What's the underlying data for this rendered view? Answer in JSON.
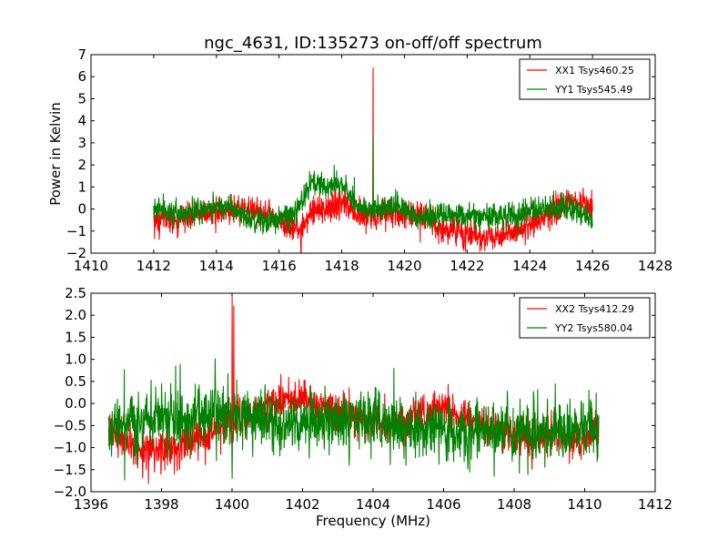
{
  "figure": {
    "title": "ngc_4631, ID:135273 on-off/off spectrum",
    "xlabel": "Frequency (MHz)"
  },
  "colors": {
    "xx": "#ff0000",
    "yy": "#008000",
    "axes": "#000000",
    "background": "#ffffff"
  },
  "chart_data": [
    {
      "type": "line",
      "title": "ngc_4631, ID:135273 on-off/off spectrum",
      "xlabel": "",
      "ylabel": "Power in Kelvin",
      "xlim": [
        1410,
        1428
      ],
      "ylim": [
        -2,
        7
      ],
      "xticks": [
        "1410",
        "1412",
        "1414",
        "1416",
        "1418",
        "1420",
        "1422",
        "1424",
        "1426",
        "1428"
      ],
      "yticks": [
        "−2",
        "−1",
        "0",
        "1",
        "2",
        "3",
        "4",
        "5",
        "6",
        "7"
      ],
      "grid": false,
      "legend_position": "top-right",
      "series": [
        {
          "name": "XX1 Tsys460.25",
          "color": "#ff0000",
          "x_start": 1412.0,
          "x_end": 1426.0,
          "anchors": [
            [
              1412,
              -0.5
            ],
            [
              1412.5,
              -0.5
            ],
            [
              1413,
              -0.4
            ],
            [
              1413.5,
              -0.2
            ],
            [
              1414,
              -0.2
            ],
            [
              1414.5,
              -0.1
            ],
            [
              1415,
              0
            ],
            [
              1415.5,
              -0.2
            ],
            [
              1416,
              -0.5
            ],
            [
              1416.5,
              -0.9
            ],
            [
              1416.8,
              -0.8
            ],
            [
              1417,
              -0.2
            ],
            [
              1417.5,
              0
            ],
            [
              1418,
              0.3
            ],
            [
              1418.5,
              -0.2
            ],
            [
              1419,
              -0.3
            ],
            [
              1419.5,
              -0.1
            ],
            [
              1420,
              -0.1
            ],
            [
              1420.5,
              -0.4
            ],
            [
              1421,
              -0.8
            ],
            [
              1421.5,
              -1.0
            ],
            [
              1422,
              -1.1
            ],
            [
              1422.5,
              -1.3
            ],
            [
              1423,
              -1.3
            ],
            [
              1423.5,
              -1.0
            ],
            [
              1424,
              -0.8
            ],
            [
              1424.5,
              -0.3
            ],
            [
              1425,
              0.2
            ],
            [
              1425.5,
              0.4
            ],
            [
              1426,
              0.2
            ]
          ],
          "noise": 0.32,
          "spikes": [
            [
              1419.0,
              6.4
            ],
            [
              1416.7,
              -2.0
            ],
            [
              1420.5,
              -1.5
            ]
          ]
        },
        {
          "name": "YY1 Tsys545.49",
          "color": "#008000",
          "x_start": 1412.0,
          "x_end": 1426.0,
          "anchors": [
            [
              1412,
              0
            ],
            [
              1412.5,
              -0.1
            ],
            [
              1413,
              -0.2
            ],
            [
              1413.5,
              -0.1
            ],
            [
              1414,
              0.1
            ],
            [
              1414.5,
              0
            ],
            [
              1415,
              -0.4
            ],
            [
              1415.5,
              -0.5
            ],
            [
              1416,
              -0.5
            ],
            [
              1416.5,
              -0.1
            ],
            [
              1416.8,
              0.6
            ],
            [
              1417,
              1.2
            ],
            [
              1417.5,
              1.0
            ],
            [
              1418,
              1.2
            ],
            [
              1418.3,
              0.5
            ],
            [
              1418.5,
              0
            ],
            [
              1419,
              0
            ],
            [
              1419.5,
              0.1
            ],
            [
              1420,
              0
            ],
            [
              1420.5,
              -0.3
            ],
            [
              1421,
              -0.2
            ],
            [
              1421.5,
              -0.3
            ],
            [
              1422,
              -0.3
            ],
            [
              1422.5,
              -0.4
            ],
            [
              1423,
              -0.3
            ],
            [
              1423.5,
              -0.3
            ],
            [
              1424,
              -0.2
            ],
            [
              1424.5,
              0
            ],
            [
              1425,
              0.1
            ],
            [
              1425.5,
              -0.1
            ],
            [
              1426,
              -0.5
            ]
          ],
          "noise": 0.28,
          "spikes": [
            [
              1419.0,
              3.3
            ]
          ]
        }
      ]
    },
    {
      "type": "line",
      "title": "",
      "xlabel": "Frequency (MHz)",
      "ylabel": "",
      "xlim": [
        1396,
        1412
      ],
      "ylim": [
        -2.0,
        2.5
      ],
      "xticks": [
        "1396",
        "1398",
        "1400",
        "1402",
        "1404",
        "1406",
        "1408",
        "1410",
        "1412"
      ],
      "yticks": [
        "−2.0",
        "−1.5",
        "−1.0",
        "−0.5",
        "0.0",
        "0.5",
        "1.0",
        "1.5",
        "2.0",
        "2.5"
      ],
      "grid": false,
      "legend_position": "top-right",
      "series": [
        {
          "name": "XX2 Tsys412.29",
          "color": "#ff0000",
          "x_start": 1396.5,
          "x_end": 1410.4,
          "anchors": [
            [
              1396.5,
              -0.6
            ],
            [
              1397,
              -0.9
            ],
            [
              1397.5,
              -1.1
            ],
            [
              1398,
              -1.1
            ],
            [
              1398.5,
              -1.0
            ],
            [
              1399,
              -0.8
            ],
            [
              1399.5,
              -0.7
            ],
            [
              1400,
              -0.4
            ],
            [
              1400.5,
              -0.3
            ],
            [
              1401,
              0
            ],
            [
              1401.5,
              0.1
            ],
            [
              1402,
              0.1
            ],
            [
              1402.5,
              0
            ],
            [
              1403,
              -0.2
            ],
            [
              1403.5,
              -0.3
            ],
            [
              1404,
              -0.4
            ],
            [
              1404.5,
              -0.5
            ],
            [
              1405,
              -0.4
            ],
            [
              1405.5,
              -0.2
            ],
            [
              1406,
              -0.1
            ],
            [
              1406.5,
              -0.3
            ],
            [
              1407,
              -0.5
            ],
            [
              1407.5,
              -0.6
            ],
            [
              1408,
              -0.7
            ],
            [
              1408.5,
              -0.8
            ],
            [
              1409,
              -0.7
            ],
            [
              1409.5,
              -0.8
            ],
            [
              1410,
              -0.8
            ],
            [
              1410.4,
              -0.6
            ]
          ],
          "noise": 0.22,
          "spikes": [
            [
              1400.0,
              2.4
            ],
            [
              1400.05,
              2.2
            ]
          ]
        },
        {
          "name": "YY2 Tsys580.04",
          "color": "#008000",
          "x_start": 1396.5,
          "x_end": 1410.4,
          "anchors": [
            [
              1396.5,
              -0.6
            ],
            [
              1397,
              -0.4
            ],
            [
              1397.5,
              -0.4
            ],
            [
              1398,
              -0.3
            ],
            [
              1398.5,
              -0.3
            ],
            [
              1399,
              -0.3
            ],
            [
              1399.5,
              -0.2
            ],
            [
              1400,
              -0.2
            ],
            [
              1400.5,
              -0.4
            ],
            [
              1401,
              -0.4
            ],
            [
              1401.5,
              -0.5
            ],
            [
              1402,
              -0.5
            ],
            [
              1402.5,
              -0.5
            ],
            [
              1403,
              -0.4
            ],
            [
              1403.5,
              -0.3
            ],
            [
              1404,
              -0.4
            ],
            [
              1404.5,
              -0.5
            ],
            [
              1405,
              -0.6
            ],
            [
              1405.5,
              -0.6
            ],
            [
              1406,
              -0.6
            ],
            [
              1406.5,
              -0.6
            ],
            [
              1407,
              -0.5
            ],
            [
              1407.5,
              -0.6
            ],
            [
              1408,
              -0.6
            ],
            [
              1408.5,
              -0.6
            ],
            [
              1409,
              -0.6
            ],
            [
              1409.5,
              -0.6
            ],
            [
              1410,
              -0.5
            ],
            [
              1410.4,
              -0.5
            ]
          ],
          "noise": 0.35,
          "spikes": [
            [
              1398.4,
              0.85
            ],
            [
              1400.0,
              -1.7
            ]
          ]
        }
      ]
    }
  ]
}
